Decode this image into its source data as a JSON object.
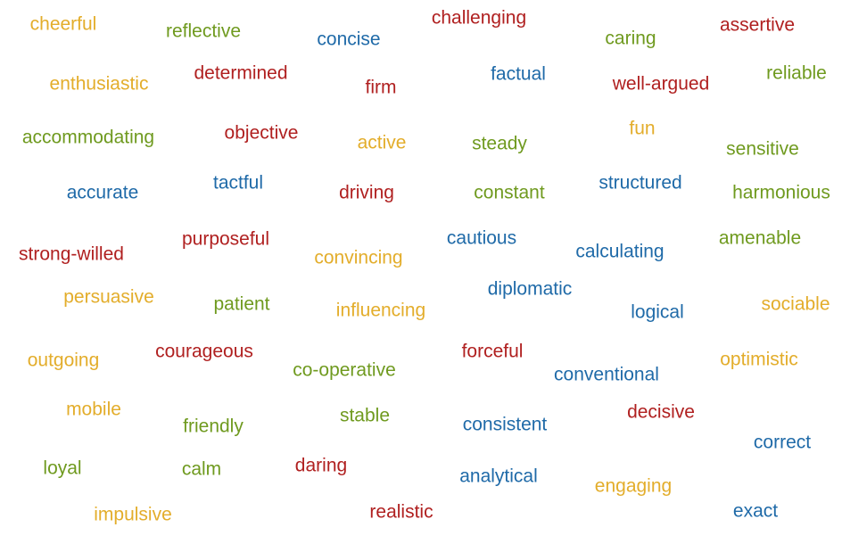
{
  "colors": {
    "yellow": "#e3ad2b",
    "green": "#6f9a1f",
    "red": "#b02020",
    "blue": "#1f6aa8"
  },
  "words": [
    {
      "text": "cheerful",
      "color": "yellow"
    },
    {
      "text": "reflective",
      "color": "green"
    },
    {
      "text": "concise",
      "color": "blue"
    },
    {
      "text": "challenging",
      "color": "red"
    },
    {
      "text": "caring",
      "color": "green"
    },
    {
      "text": "assertive",
      "color": "red"
    },
    {
      "text": "enthusiastic",
      "color": "yellow"
    },
    {
      "text": "determined",
      "color": "red"
    },
    {
      "text": "firm",
      "color": "red"
    },
    {
      "text": "factual",
      "color": "blue"
    },
    {
      "text": "well-argued",
      "color": "red"
    },
    {
      "text": "reliable",
      "color": "green"
    },
    {
      "text": "accommodating",
      "color": "green"
    },
    {
      "text": "objective",
      "color": "red"
    },
    {
      "text": "active",
      "color": "yellow"
    },
    {
      "text": "steady",
      "color": "green"
    },
    {
      "text": "fun",
      "color": "yellow"
    },
    {
      "text": "sensitive",
      "color": "green"
    },
    {
      "text": "accurate",
      "color": "blue"
    },
    {
      "text": "tactful",
      "color": "blue"
    },
    {
      "text": "driving",
      "color": "red"
    },
    {
      "text": "constant",
      "color": "green"
    },
    {
      "text": "structured",
      "color": "blue"
    },
    {
      "text": "harmonious",
      "color": "green"
    },
    {
      "text": "strong-willed",
      "color": "red"
    },
    {
      "text": "purposeful",
      "color": "red"
    },
    {
      "text": "convincing",
      "color": "yellow"
    },
    {
      "text": "cautious",
      "color": "blue"
    },
    {
      "text": "calculating",
      "color": "blue"
    },
    {
      "text": "amenable",
      "color": "green"
    },
    {
      "text": "persuasive",
      "color": "yellow"
    },
    {
      "text": "patient",
      "color": "green"
    },
    {
      "text": "influencing",
      "color": "yellow"
    },
    {
      "text": "diplomatic",
      "color": "blue"
    },
    {
      "text": "logical",
      "color": "blue"
    },
    {
      "text": "sociable",
      "color": "yellow"
    },
    {
      "text": "outgoing",
      "color": "yellow"
    },
    {
      "text": "courageous",
      "color": "red"
    },
    {
      "text": "co-operative",
      "color": "green"
    },
    {
      "text": "forceful",
      "color": "red"
    },
    {
      "text": "conventional",
      "color": "blue"
    },
    {
      "text": "optimistic",
      "color": "yellow"
    },
    {
      "text": "mobile",
      "color": "yellow"
    },
    {
      "text": "friendly",
      "color": "green"
    },
    {
      "text": "stable",
      "color": "green"
    },
    {
      "text": "consistent",
      "color": "blue"
    },
    {
      "text": "decisive",
      "color": "red"
    },
    {
      "text": "correct",
      "color": "blue"
    },
    {
      "text": "loyal",
      "color": "green"
    },
    {
      "text": "calm",
      "color": "green"
    },
    {
      "text": "daring",
      "color": "red"
    },
    {
      "text": "analytical",
      "color": "blue"
    },
    {
      "text": "engaging",
      "color": "yellow"
    },
    {
      "text": "exact",
      "color": "blue"
    },
    {
      "text": "impulsive",
      "color": "yellow"
    },
    {
      "text": "realistic",
      "color": "red"
    }
  ]
}
